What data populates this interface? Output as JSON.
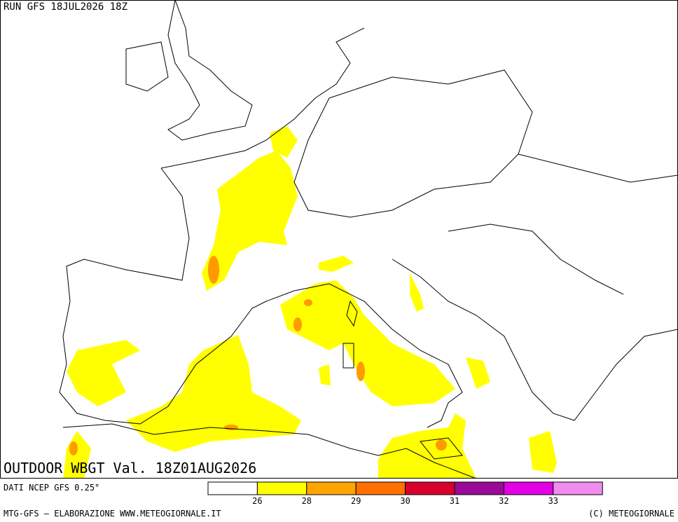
{
  "header": {
    "run": "RUN GFS 18JUL2026 18Z"
  },
  "map": {
    "title": "OUTDOOR WBGT Val. 18Z01AUG2026"
  },
  "footer": {
    "source": "DATI NCEP GFS 0.25°",
    "credit": "MTG-GFS — ELABORAZIONE WWW.METEOGIORNALE.IT",
    "copyright": "(C) METEOGIORNALE"
  },
  "legend": {
    "colors": [
      "#ffffff",
      "#ffff00",
      "#ffa500",
      "#ff7000",
      "#d8002c",
      "#9a0a96",
      "#e400e4",
      "#f08cf0"
    ],
    "thresholds": [
      26,
      28,
      29,
      30,
      31,
      32,
      33
    ]
  }
}
